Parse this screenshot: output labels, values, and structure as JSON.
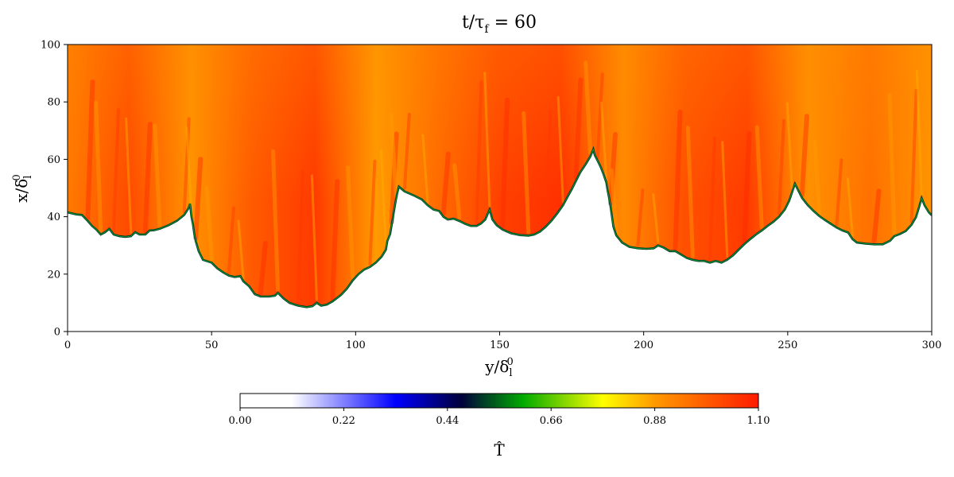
{
  "chart_data": {
    "type": "heatmap",
    "title": {
      "main": "t/τ",
      "sub": "f",
      "tail": " = 60"
    },
    "xlabel": {
      "main": "y/δ",
      "sub": "l",
      "sup": "0"
    },
    "ylabel": {
      "main": "x/δ",
      "sub": "l",
      "sup": "0"
    },
    "xlim": [
      0,
      300
    ],
    "ylim": [
      0,
      100
    ],
    "xticks": [
      0,
      50,
      100,
      150,
      200,
      250,
      300
    ],
    "yticks": [
      0,
      20,
      40,
      60,
      80,
      100
    ],
    "grid": false,
    "field": "normalized temperature",
    "colorbar": {
      "label": "T̂",
      "range": [
        0.0,
        1.1
      ],
      "ticks": [
        "0.00",
        "0.22",
        "0.44",
        "0.66",
        "0.88",
        "1.10"
      ],
      "colors": [
        {
          "value": 0.0,
          "color": "#ffffff"
        },
        {
          "value": 0.11,
          "color": "#ffffff"
        },
        {
          "value": 0.33,
          "color": "#0000ff"
        },
        {
          "value": 0.47,
          "color": "#00003a"
        },
        {
          "value": 0.6,
          "color": "#00aa00"
        },
        {
          "value": 0.77,
          "color": "#ffff00"
        },
        {
          "value": 0.88,
          "color": "#ff9a00"
        },
        {
          "value": 1.1,
          "color": "#ff1a00"
        }
      ]
    },
    "unburnt_value": 0.0,
    "burnt_value": 1.0,
    "flame_front": [
      [
        0,
        41.5
      ],
      [
        3,
        40.8
      ],
      [
        5,
        40.6
      ],
      [
        7,
        38.5
      ],
      [
        8.5,
        36.8
      ],
      [
        10,
        35.5
      ],
      [
        11.5,
        33.8
      ],
      [
        13,
        34.6
      ],
      [
        14.5,
        35.8
      ],
      [
        16,
        33.8
      ],
      [
        18,
        33.2
      ],
      [
        20,
        33.0
      ],
      [
        22,
        33.2
      ],
      [
        23.5,
        34.6
      ],
      [
        25,
        33.8
      ],
      [
        27,
        33.8
      ],
      [
        28.5,
        35.2
      ],
      [
        30,
        35.3
      ],
      [
        32,
        35.8
      ],
      [
        35,
        37.0
      ],
      [
        38,
        38.6
      ],
      [
        40.5,
        40.6
      ],
      [
        42,
        43.0
      ],
      [
        42.5,
        44.5
      ],
      [
        43,
        40.0
      ],
      [
        43.5,
        37.5
      ],
      [
        44,
        34.0
      ],
      [
        44.5,
        31.5
      ],
      [
        45.5,
        28.0
      ],
      [
        47,
        25.0
      ],
      [
        50,
        24.0
      ],
      [
        52,
        22.0
      ],
      [
        54,
        20.6
      ],
      [
        56,
        19.5
      ],
      [
        58,
        19.0
      ],
      [
        60,
        19.3
      ],
      [
        61,
        17.5
      ],
      [
        63,
        15.8
      ],
      [
        65,
        13.0
      ],
      [
        67,
        12.2
      ],
      [
        70,
        12.2
      ],
      [
        72,
        12.5
      ],
      [
        73,
        13.5
      ],
      [
        75,
        11.5
      ],
      [
        77,
        10.0
      ],
      [
        80,
        9.0
      ],
      [
        83,
        8.5
      ],
      [
        85,
        8.8
      ],
      [
        86.5,
        10.0
      ],
      [
        88,
        9.0
      ],
      [
        90,
        9.4
      ],
      [
        92,
        10.5
      ],
      [
        95,
        12.8
      ],
      [
        97,
        15.0
      ],
      [
        99,
        17.8
      ],
      [
        101,
        20.0
      ],
      [
        103,
        21.6
      ],
      [
        105,
        22.5
      ],
      [
        107,
        24.0
      ],
      [
        109,
        26.0
      ],
      [
        110.5,
        28.5
      ],
      [
        111,
        31.5
      ],
      [
        112,
        34.0
      ],
      [
        112.5,
        37.0
      ],
      [
        113,
        40.0
      ],
      [
        113.5,
        43.0
      ],
      [
        114,
        46.0
      ],
      [
        114.5,
        48.5
      ],
      [
        115,
        50.5
      ],
      [
        117,
        48.8
      ],
      [
        120,
        47.5
      ],
      [
        123,
        46.0
      ],
      [
        125,
        44.0
      ],
      [
        127,
        42.5
      ],
      [
        129,
        42.0
      ],
      [
        130.5,
        40.0
      ],
      [
        132,
        39.0
      ],
      [
        134,
        39.3
      ],
      [
        136,
        38.5
      ],
      [
        138,
        37.5
      ],
      [
        140,
        36.8
      ],
      [
        142,
        36.8
      ],
      [
        143.5,
        37.6
      ],
      [
        145,
        39.0
      ],
      [
        146.5,
        42.5
      ],
      [
        147.5,
        39.0
      ],
      [
        149,
        37.0
      ],
      [
        151,
        35.5
      ],
      [
        154,
        34.2
      ],
      [
        157,
        33.6
      ],
      [
        160,
        33.4
      ],
      [
        162,
        33.8
      ],
      [
        164,
        34.8
      ],
      [
        166,
        36.5
      ],
      [
        168,
        38.6
      ],
      [
        170,
        41.2
      ],
      [
        172,
        44.0
      ],
      [
        173.5,
        46.8
      ],
      [
        175,
        49.5
      ],
      [
        176.5,
        52.5
      ],
      [
        178,
        55.5
      ],
      [
        180,
        58.5
      ],
      [
        181.5,
        61.0
      ],
      [
        182.5,
        63.5
      ],
      [
        183,
        61.5
      ],
      [
        184,
        59.5
      ],
      [
        185,
        57.5
      ],
      [
        186,
        55.0
      ],
      [
        187,
        52.0
      ],
      [
        187.5,
        49.0
      ],
      [
        188,
        46.5
      ],
      [
        188.5,
        43.5
      ],
      [
        189,
        40.0
      ],
      [
        189.5,
        36.5
      ],
      [
        190.5,
        33.5
      ],
      [
        192.5,
        31.0
      ],
      [
        195,
        29.5
      ],
      [
        198,
        29.0
      ],
      [
        201,
        28.8
      ],
      [
        203.5,
        29.0
      ],
      [
        205,
        30.0
      ],
      [
        207,
        29.2
      ],
      [
        209,
        28.0
      ],
      [
        211,
        28.0
      ],
      [
        213,
        26.8
      ],
      [
        215,
        25.6
      ],
      [
        217,
        25.0
      ],
      [
        219,
        24.6
      ],
      [
        221,
        24.6
      ],
      [
        223,
        24.0
      ],
      [
        225,
        24.6
      ],
      [
        227,
        24.0
      ],
      [
        229,
        25.0
      ],
      [
        231,
        26.5
      ],
      [
        233,
        28.5
      ],
      [
        235,
        30.5
      ],
      [
        237,
        32.2
      ],
      [
        239,
        33.8
      ],
      [
        241,
        35.2
      ],
      [
        243,
        36.8
      ],
      [
        245,
        38.2
      ],
      [
        247,
        40.0
      ],
      [
        249,
        42.5
      ],
      [
        250.5,
        45.5
      ],
      [
        251.5,
        48.5
      ],
      [
        252.5,
        51.5
      ],
      [
        253.5,
        49.5
      ],
      [
        255,
        46.5
      ],
      [
        257,
        44.0
      ],
      [
        259,
        42.0
      ],
      [
        261,
        40.2
      ],
      [
        263,
        38.8
      ],
      [
        265,
        37.5
      ],
      [
        267,
        36.2
      ],
      [
        269,
        35.2
      ],
      [
        271,
        34.5
      ],
      [
        272.5,
        32.2
      ],
      [
        274,
        31.0
      ],
      [
        277,
        30.6
      ],
      [
        280,
        30.4
      ],
      [
        283,
        30.4
      ],
      [
        285.5,
        31.6
      ],
      [
        287,
        33.2
      ],
      [
        289,
        34.0
      ],
      [
        291,
        35.0
      ],
      [
        293,
        37.2
      ],
      [
        294.5,
        39.8
      ],
      [
        295.5,
        43.0
      ],
      [
        296.5,
        46.5
      ],
      [
        297.5,
        44.0
      ],
      [
        299,
        41.5
      ],
      [
        300,
        40.5
      ]
    ]
  }
}
